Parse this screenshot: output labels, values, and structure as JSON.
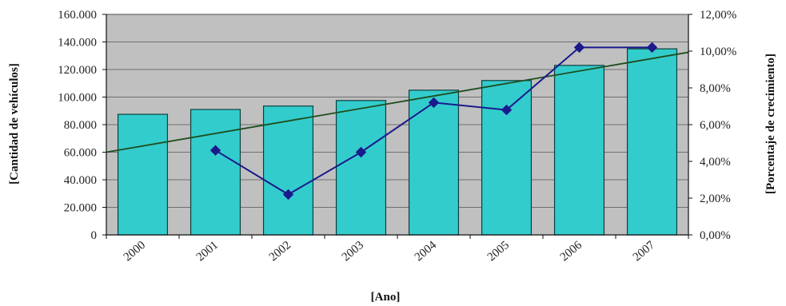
{
  "chart_data": {
    "type": "bar",
    "categories": [
      "2000",
      "2001",
      "2002",
      "2003",
      "2004",
      "2005",
      "2006",
      "2007"
    ],
    "series": [
      {
        "values": [
          87500,
          91000,
          93500,
          97500,
          105000,
          112000,
          123000,
          135000
        ],
        "color": "#33CCCC",
        "axis": "left",
        "kind": "bar"
      },
      {
        "values": [
          null,
          4.6,
          2.2,
          4.5,
          7.2,
          6.8,
          10.2,
          10.2
        ],
        "color": "#1A1A8C",
        "axis": "right",
        "kind": "line",
        "marker": "diamond"
      }
    ],
    "trendline": {
      "start": 60000,
      "end": 132500,
      "color": "#1E4D1E"
    },
    "xlabel": "[Ano]",
    "ylabel": "[Cantidad de vehículos]",
    "y2label": "[Porcentaje de crecimiento]",
    "ylim": [
      0,
      160000
    ],
    "y2lim": [
      0,
      12
    ],
    "yticks": [
      "0",
      "20.000",
      "40.000",
      "60.000",
      "80.000",
      "100.000",
      "120.000",
      "140.000",
      "160.000"
    ],
    "y2ticks": [
      "0,00%",
      "2,00%",
      "4,00%",
      "6,00%",
      "8,00%",
      "10,00%",
      "12,00%"
    ],
    "grid": true,
    "plot_background": "#C0C0C0"
  }
}
